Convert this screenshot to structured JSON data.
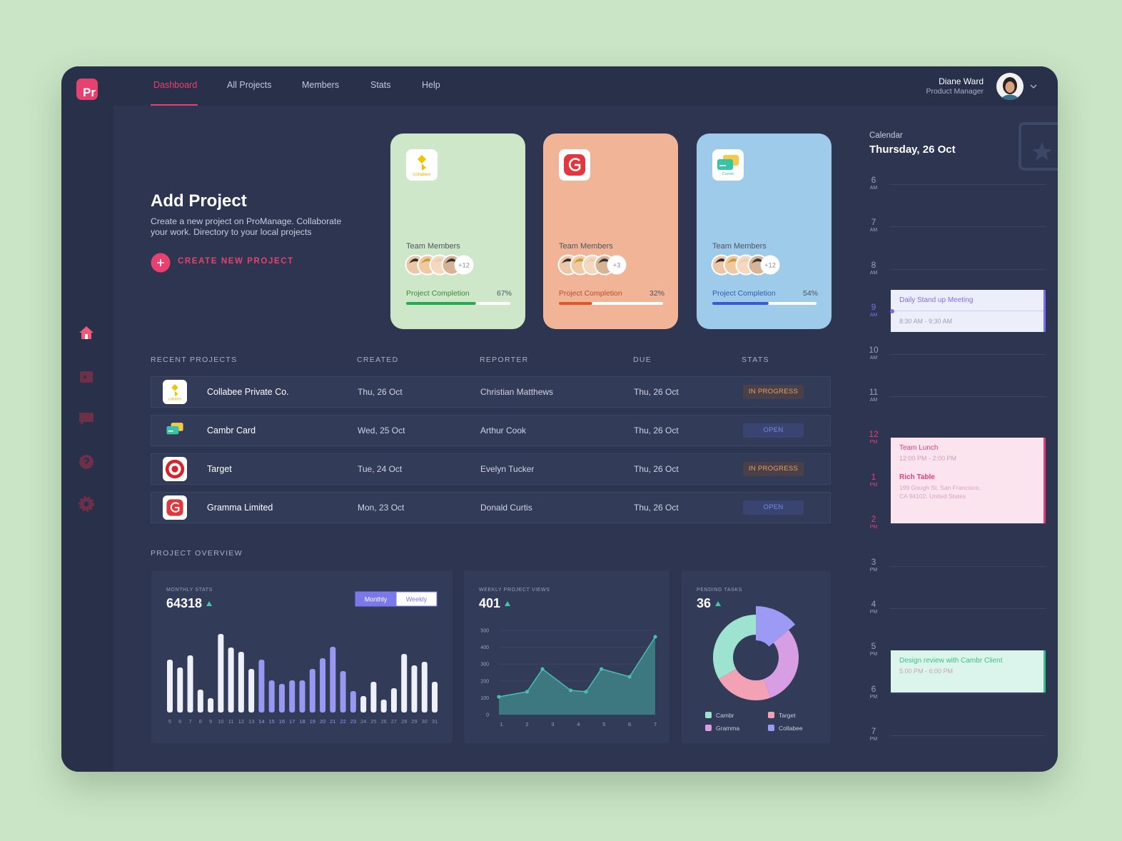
{
  "app": {
    "logo": "Pr"
  },
  "nav": {
    "items": [
      "Dashboard",
      "All Projects",
      "Members",
      "Stats",
      "Help"
    ],
    "active": 0
  },
  "user": {
    "name": "Diane Ward",
    "role": "Product Manager"
  },
  "add_project": {
    "title": "Add Project",
    "description": "Create a new project on ProManage. Collaborate your work. Directory to your local projects",
    "button": "CREATE NEW PROJECT"
  },
  "project_cards": [
    {
      "logo": "collabee",
      "team_label": "Team Members",
      "extra_members": "+12",
      "completion_label": "Project Completion",
      "completion": 67,
      "completion_text": "67%",
      "color": "#cfe7c9",
      "bar_color": "#1fae4b",
      "label_color": "#3b8a33"
    },
    {
      "team_label": "Team Members",
      "extra_members": "+3",
      "completion_label": "Project Completion",
      "completion": 32,
      "completion_text": "32%",
      "color": "#f1b497",
      "bar_color": "#e0562a",
      "label_color": "#b5502b"
    },
    {
      "logo": "Cambr",
      "team_label": "Team Members",
      "extra_members": "+12",
      "completion_label": "Project Completion",
      "completion": 54,
      "completion_text": "54%",
      "color": "#9fcbea",
      "bar_color": "#3f57d6",
      "label_color": "#3756ae"
    }
  ],
  "table": {
    "headers": [
      "RECENT PROJECTS",
      "CREATED",
      "REPORTER",
      "DUE",
      "STATS"
    ],
    "rows": [
      {
        "logo": "collabee",
        "name": "Collabee Private Co.",
        "created": "Thu, 26 Oct",
        "reporter": "Christian Matthews",
        "due": "Thu, 26 Oct",
        "status": "IN PROGRESS",
        "status_color": "#e8a05a",
        "status_background": "#4a4049"
      },
      {
        "name": "Cambr Card",
        "created": "Wed, 25 Oct",
        "reporter": "Arthur Cook",
        "due": "Thu, 26 Oct",
        "status": "OPEN",
        "status_color": "#6f8cf0",
        "status_background": "#394470"
      },
      {
        "name": "Target",
        "created": "Tue, 24 Oct",
        "reporter": "Evelyn Tucker",
        "due": "Thu, 26 Oct",
        "status": "IN PROGRESS",
        "status_color": "#e8a05a",
        "status_background": "#4a4049"
      },
      {
        "name": "Gramma Limited",
        "created": "Mon, 23 Oct",
        "reporter": "Donald Curtis",
        "due": "Thu, 26 Oct",
        "status": "OPEN",
        "status_color": "#6f8cf0",
        "status_background": "#394470"
      }
    ]
  },
  "overview": {
    "title": "PROJECT OVERVIEW",
    "monthly": {
      "type": "bar",
      "title": "MONTHLY STATS",
      "total": 64318,
      "toggle": [
        "Monthly",
        "Weekly"
      ],
      "categories": [
        "5",
        "6",
        "7",
        "8",
        "9",
        "10",
        "11",
        "12",
        "13",
        "14",
        "15",
        "16",
        "17",
        "18",
        "19",
        "20",
        "21",
        "22",
        "23",
        "24",
        "25",
        "26",
        "27",
        "28",
        "29",
        "30",
        "31"
      ],
      "values": [
        74,
        63,
        80,
        32,
        20,
        110,
        91,
        85,
        61,
        74,
        45,
        40,
        45,
        45,
        61,
        76,
        92,
        58,
        30,
        23,
        43,
        18,
        34,
        82,
        66,
        71,
        43
      ],
      "colors": [
        "#eef0fb",
        "#eef0fb",
        "#eef0fb",
        "#eef0fb",
        "#eef0fb",
        "#eef0fb",
        "#eef0fb",
        "#eef0fb",
        "#eef0fb",
        "#9a97f2",
        "#9a97f2",
        "#9a97f2",
        "#9a97f2",
        "#9a97f2",
        "#9a97f2",
        "#9a97f2",
        "#9a97f2",
        "#9a97f2",
        "#9a97f2",
        "#eef0fb",
        "#eef0fb",
        "#eef0fb",
        "#eef0fb",
        "#eef0fb",
        "#eef0fb",
        "#eef0fb",
        "#eef0fb"
      ],
      "ylim": [
        0,
        120
      ]
    },
    "weekly": {
      "type": "line",
      "title": "WEEKLY PROJECT VIEWS",
      "total": 401,
      "x": [
        0.9,
        2,
        2.6,
        3.7,
        4.3,
        4.9,
        6,
        7
      ],
      "values": [
        106,
        136,
        271,
        144,
        136,
        271,
        225,
        462
      ],
      "xlim": [
        0.9,
        7
      ],
      "ylim": [
        0,
        500
      ],
      "xticks": [
        1,
        2,
        3,
        4,
        5,
        6,
        7
      ],
      "yticks": [
        0,
        100,
        200,
        300,
        400,
        500
      ],
      "color": "#47bfb0",
      "grid": true
    },
    "pending": {
      "type": "pie",
      "title": "PENDING TASKS",
      "total": 36,
      "categories": [
        "Collabee",
        "Gramma",
        "Target",
        "Cambr"
      ],
      "values": [
        5,
        11,
        8,
        12
      ],
      "colors": [
        "#9d9af5",
        "#d79ee3",
        "#f3a2b6",
        "#9de3cf"
      ]
    }
  },
  "calendar": {
    "title": "Calendar",
    "date": "Thursday, 26 Oct",
    "hours": [
      {
        "hour": 6,
        "period": "AM",
        "color": "#9aa3bd"
      },
      {
        "hour": 7,
        "period": "AM",
        "color": "#9aa3bd"
      },
      {
        "hour": 8,
        "period": "AM",
        "color": "#9aa3bd"
      },
      {
        "hour": 9,
        "period": "AM",
        "color": "#7c6cf0"
      },
      {
        "hour": 10,
        "period": "AM",
        "color": "#9aa3bd"
      },
      {
        "hour": 11,
        "period": "AM",
        "color": "#9aa3bd"
      },
      {
        "hour": 12,
        "period": "PM",
        "color": "#e0407a"
      },
      {
        "hour": 1,
        "period": "PM",
        "color": "#e0407a"
      },
      {
        "hour": 2,
        "period": "PM",
        "color": "#e0407a"
      },
      {
        "hour": 3,
        "period": "PM",
        "color": "#9aa3bd"
      },
      {
        "hour": 4,
        "period": "PM",
        "color": "#9aa3bd"
      },
      {
        "hour": 5,
        "period": "PM",
        "color": "#9aa3bd"
      },
      {
        "hour": 6,
        "period": "PM",
        "color": "#9aa3bd"
      },
      {
        "hour": 7,
        "period": "PM",
        "color": "#9aa3bd"
      }
    ],
    "events": [
      {
        "title": "Daily Stand up Meeting",
        "time": "8:30 AM - 9:30 AM",
        "color": "#7c6cf0",
        "background": "#eceffa"
      },
      {
        "title": "Team Lunch",
        "time": "12:00 PM - 2:00 PM",
        "place": "Rich Table",
        "address": "199 Gough St, San Francisco, CA 94102, United States",
        "color": "#e0407a",
        "background": "#fce4ef"
      },
      {
        "title": "Design review with Cambr Client",
        "time": "5:00 PM - 6:00 PM",
        "color": "#3cbf8a",
        "background": "#dcf5ec"
      }
    ]
  }
}
